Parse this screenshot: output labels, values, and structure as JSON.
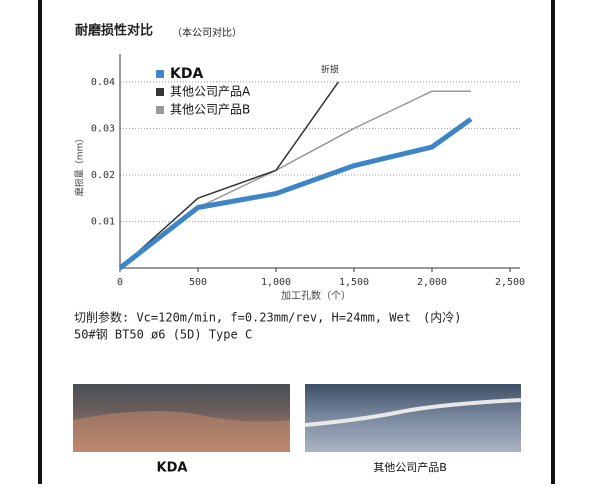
{
  "chart_data": {
    "type": "line",
    "title": "耐磨损性对比",
    "subtitle": "（本公司对比）",
    "y_label": "磨损量（mm）",
    "x_label": "加工孔数（个）",
    "annotation": "折损",
    "xlim": [
      0,
      2500
    ],
    "ylim": [
      0,
      0.046
    ],
    "xticks": [
      0,
      500,
      {
        "value": 1000,
        "label": "1,000"
      },
      {
        "value": 1500,
        "label": "1,500"
      },
      {
        "value": 2000,
        "label": "2,000"
      },
      {
        "value": 2500,
        "label": "2,500"
      }
    ],
    "yticks": [
      0.01,
      0.02,
      0.03,
      0.04
    ],
    "grid": true,
    "series": [
      {
        "name": "KDA",
        "color": "#3d85c6",
        "x": [
          0,
          500,
          1000,
          1500,
          2000,
          2250
        ],
        "values": [
          0,
          0.013,
          0.016,
          0.022,
          0.026,
          0.032
        ]
      },
      {
        "name": "其他公司产品A",
        "color": "#333333",
        "x": [
          0,
          500,
          1000,
          1400
        ],
        "values": [
          0,
          0.015,
          0.021,
          0.04
        ]
      },
      {
        "name": "其他公司产品B",
        "color": "#999999",
        "x": [
          0,
          500,
          1000,
          1500,
          2000,
          2250
        ],
        "values": [
          0,
          0.013,
          0.021,
          0.03,
          0.038,
          0.038
        ]
      }
    ]
  },
  "notes": [
    "切削参数: Vc=120m/min, f=0.23mm/rev, H=24mm, Wet　(内冷)",
    "50#钢 BT50 ø6 (5D) Type C"
  ],
  "photos": [
    "KDA",
    "其他公司产品B"
  ]
}
